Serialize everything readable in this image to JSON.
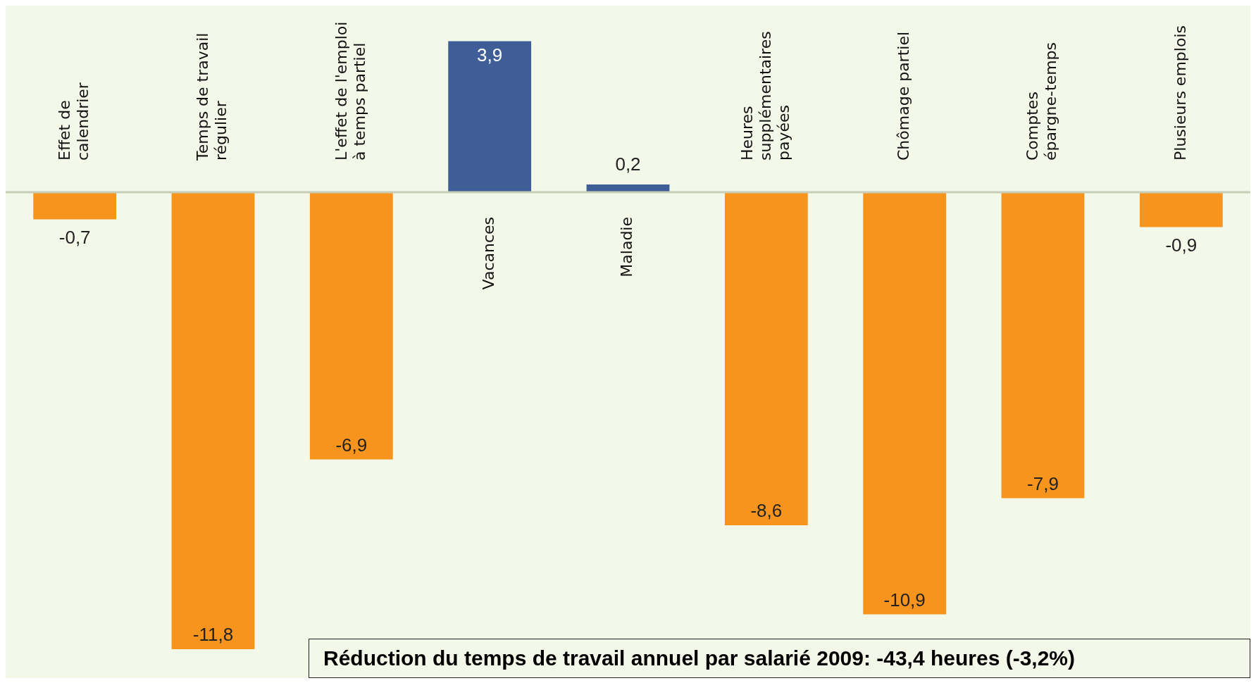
{
  "chart_data": {
    "type": "bar",
    "categories": [
      "Effet de calendrier",
      "Temps de travail régulier",
      "L'effet de l'emploi à temps partiel",
      "Vacances",
      "Maladie",
      "Heures supplémentaires payées",
      "Chômage partiel",
      "Comptes épargne-temps",
      "Plusieurs emplois"
    ],
    "values": [
      -0.7,
      -11.8,
      -6.9,
      3.9,
      0.2,
      -8.6,
      -10.9,
      -7.9,
      -0.9
    ],
    "colors": [
      "#f7941d",
      "#f7941d",
      "#f7941d",
      "#3f5e98",
      "#3f5e98",
      "#f7941d",
      "#f7941d",
      "#f7941d",
      "#f7941d"
    ],
    "value_labels": [
      "-0,7",
      "-11,8",
      "-6,9",
      "3,9",
      "0,2",
      "-8,6",
      "-10,9",
      "-7,9",
      "-0,9"
    ],
    "legend": false,
    "annotations": [
      "Réduction du temps de travail annuel par salarié 2009: -43,4 heures (-3,2%)"
    ]
  }
}
